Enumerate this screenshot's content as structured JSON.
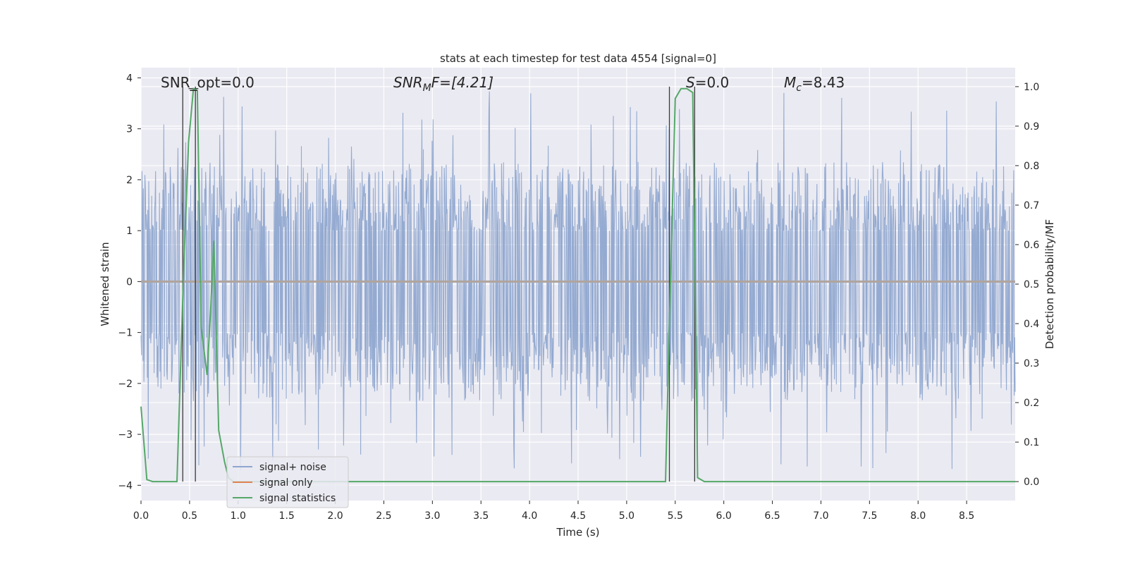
{
  "chart_data": {
    "type": "line",
    "title": "stats at each timestep for test data 4554 [signal=0]",
    "xlabel": "Time (s)",
    "ylabel": "Whitened strain",
    "y2label": "Detection probability/MF",
    "xlim": [
      0.0,
      9.0
    ],
    "ylim": [
      -4.3,
      4.2
    ],
    "y2lim": [
      -0.048,
      1.048
    ],
    "xticks": [
      "0.0",
      "0.5",
      "1.0",
      "1.5",
      "2.0",
      "2.5",
      "3.0",
      "3.5",
      "4.0",
      "4.5",
      "5.0",
      "5.5",
      "6.0",
      "6.5",
      "7.0",
      "7.5",
      "8.0",
      "8.5"
    ],
    "yticks": [
      "−4",
      "−3",
      "−2",
      "−1",
      "0",
      "1",
      "2",
      "3",
      "4"
    ],
    "y2ticks": [
      "0.0",
      "0.1",
      "0.2",
      "0.3",
      "0.4",
      "0.5",
      "0.6",
      "0.7",
      "0.8",
      "0.9",
      "1.0"
    ],
    "grid": true,
    "legend_placement": "lower-left",
    "annotations": {
      "snr_opt": "SNR_opt=0.0",
      "snr_mf_main": "SNR",
      "snr_mf_sub": "M",
      "snr_mf_rest": "F=[4.21]",
      "s_main": "S",
      "s_rest": "=0.0",
      "mc_main": "M",
      "mc_sub": "c",
      "mc_rest": "=8.43"
    },
    "series": [
      {
        "name": "signal+ noise",
        "color": "#8fa6cf",
        "kind": "noise",
        "duration_s": 9.0,
        "envelope": {
          "typical_max": 2.5,
          "typical_min": -2.3,
          "peak_max": 3.85,
          "peak_min": -4.0
        }
      },
      {
        "name": "signal only",
        "color": "#dd8452",
        "x": [
          0.0,
          9.0
        ],
        "y": [
          0.0,
          0.0
        ]
      },
      {
        "name": "signal statistics",
        "color": "#55a868",
        "axis": "right",
        "x": [
          0.0,
          0.06,
          0.12,
          0.37,
          0.44,
          0.49,
          0.54,
          0.58,
          0.62,
          0.68,
          0.72,
          0.75,
          0.8,
          0.86,
          0.9,
          0.95,
          1.0,
          5.4,
          5.45,
          5.5,
          5.56,
          5.62,
          5.68,
          5.73,
          5.8,
          9.0
        ],
        "y": [
          0.19,
          0.005,
          0.0,
          0.0,
          0.54,
          0.86,
          0.995,
          0.99,
          0.39,
          0.27,
          0.45,
          0.61,
          0.13,
          0.05,
          0.01,
          0.0,
          0.0,
          0.0,
          0.5,
          0.97,
          0.995,
          0.995,
          0.985,
          0.01,
          0.0,
          0.0
        ]
      }
    ],
    "markers": {
      "color": "#3a3a3a",
      "x": [
        0.43,
        0.56,
        5.44,
        5.7
      ]
    },
    "legend": [
      "signal+ noise",
      "signal only",
      "signal statistics"
    ]
  }
}
